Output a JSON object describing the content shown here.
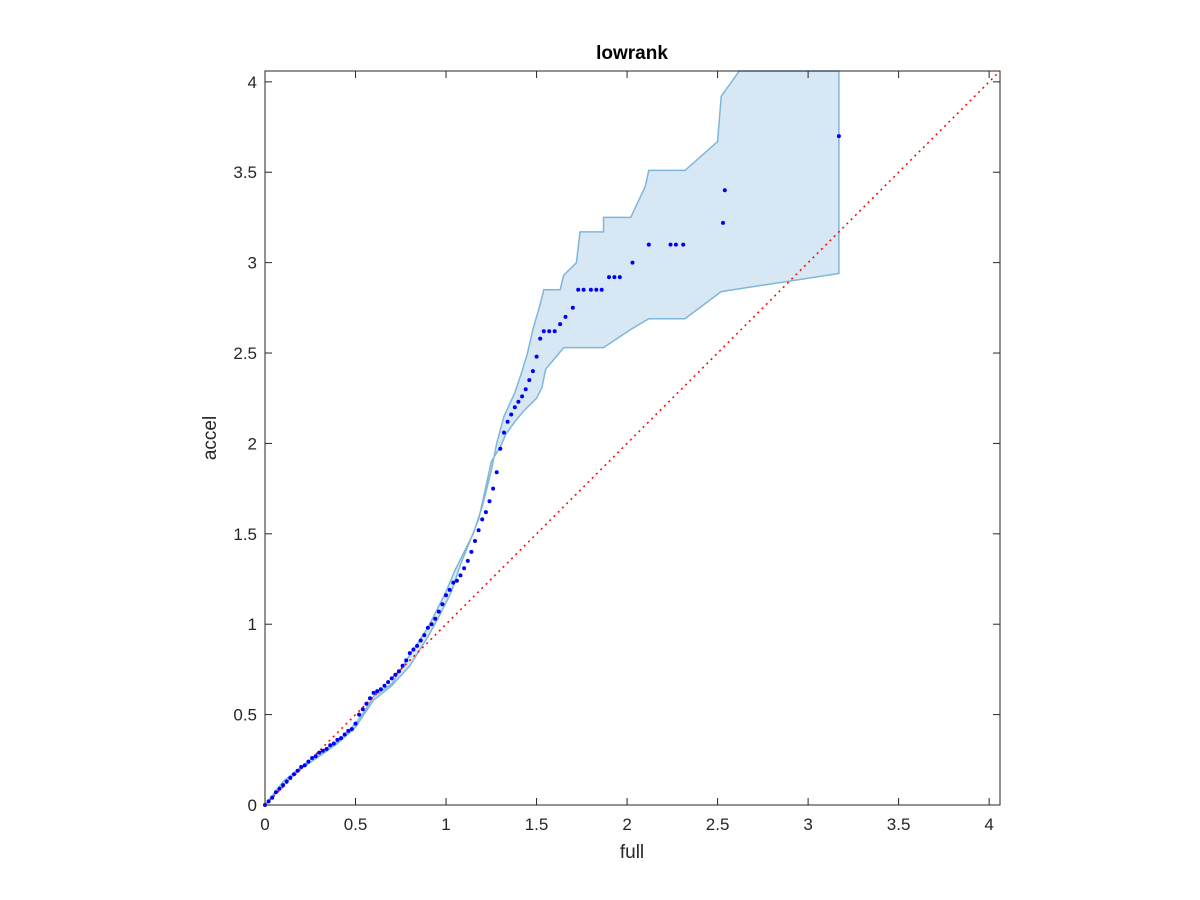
{
  "chart_data": {
    "type": "scatter",
    "title": "lowrank",
    "xlabel": "full",
    "ylabel": "accel",
    "xlim": [
      0,
      4.06
    ],
    "ylim": [
      0,
      4.06
    ],
    "xticks": [
      "0",
      "0.5",
      "1",
      "1.5",
      "2",
      "2.5",
      "3",
      "3.5",
      "4"
    ],
    "yticks": [
      "0",
      "0.5",
      "1",
      "1.5",
      "2",
      "2.5",
      "3",
      "3.5",
      "4"
    ],
    "grid": false,
    "colors": {
      "points": "#0000ff",
      "band_fill": "#d7e7f3",
      "band_edge": "#7fb6db",
      "reference": "#ff0000",
      "axes": "#262626"
    },
    "reference_line": {
      "style": "dotted",
      "points": [
        [
          0,
          0
        ],
        [
          4.06,
          4.06
        ]
      ]
    },
    "band_upper": [
      [
        0,
        0
      ],
      [
        0.1,
        0.13
      ],
      [
        0.2,
        0.21
      ],
      [
        0.3,
        0.29
      ],
      [
        0.4,
        0.35
      ],
      [
        0.5,
        0.45
      ],
      [
        0.55,
        0.52
      ],
      [
        0.6,
        0.6
      ],
      [
        0.7,
        0.67
      ],
      [
        0.8,
        0.83
      ],
      [
        0.9,
        0.98
      ],
      [
        1.0,
        1.18
      ],
      [
        1.05,
        1.3
      ],
      [
        1.1,
        1.4
      ],
      [
        1.15,
        1.5
      ],
      [
        1.2,
        1.65
      ],
      [
        1.25,
        1.85
      ],
      [
        1.28,
        2.0
      ],
      [
        1.32,
        2.15
      ],
      [
        1.38,
        2.28
      ],
      [
        1.42,
        2.4
      ],
      [
        1.45,
        2.5
      ],
      [
        1.48,
        2.63
      ],
      [
        1.52,
        2.77
      ],
      [
        1.54,
        2.85
      ],
      [
        1.63,
        2.85
      ],
      [
        1.65,
        2.93
      ],
      [
        1.72,
        3.0
      ],
      [
        1.74,
        3.17
      ],
      [
        1.87,
        3.17
      ],
      [
        1.87,
        3.25
      ],
      [
        2.02,
        3.25
      ],
      [
        2.1,
        3.42
      ],
      [
        2.12,
        3.51
      ],
      [
        2.32,
        3.51
      ],
      [
        2.5,
        3.67
      ],
      [
        2.52,
        3.92
      ],
      [
        2.62,
        4.06
      ],
      [
        3.17,
        4.06
      ]
    ],
    "band_lower": [
      [
        3.17,
        2.94
      ],
      [
        2.52,
        2.84
      ],
      [
        2.32,
        2.69
      ],
      [
        2.12,
        2.69
      ],
      [
        2.02,
        2.63
      ],
      [
        1.87,
        2.53
      ],
      [
        1.65,
        2.53
      ],
      [
        1.6,
        2.47
      ],
      [
        1.55,
        2.41
      ],
      [
        1.53,
        2.31
      ],
      [
        1.5,
        2.25
      ],
      [
        1.43,
        2.18
      ],
      [
        1.38,
        2.12
      ],
      [
        1.33,
        2.05
      ],
      [
        1.3,
        1.98
      ],
      [
        1.25,
        1.9
      ],
      [
        1.22,
        1.76
      ],
      [
        1.18,
        1.58
      ],
      [
        1.12,
        1.43
      ],
      [
        1.08,
        1.33
      ],
      [
        1.03,
        1.18
      ],
      [
        0.97,
        1.06
      ],
      [
        0.9,
        0.93
      ],
      [
        0.8,
        0.77
      ],
      [
        0.7,
        0.66
      ],
      [
        0.6,
        0.58
      ],
      [
        0.5,
        0.43
      ],
      [
        0.4,
        0.34
      ],
      [
        0.3,
        0.27
      ],
      [
        0.2,
        0.2
      ],
      [
        0.1,
        0.11
      ],
      [
        0,
        0
      ]
    ],
    "x": [
      0,
      0.02,
      0.04,
      0.06,
      0.08,
      0.1,
      0.12,
      0.14,
      0.16,
      0.18,
      0.2,
      0.22,
      0.24,
      0.26,
      0.28,
      0.3,
      0.32,
      0.34,
      0.36,
      0.38,
      0.4,
      0.42,
      0.44,
      0.46,
      0.48,
      0.5,
      0.52,
      0.54,
      0.56,
      0.58,
      0.6,
      0.62,
      0.64,
      0.66,
      0.68,
      0.7,
      0.72,
      0.74,
      0.76,
      0.78,
      0.8,
      0.82,
      0.84,
      0.86,
      0.88,
      0.9,
      0.92,
      0.94,
      0.96,
      0.98,
      1.0,
      1.02,
      1.04,
      1.06,
      1.08,
      1.1,
      1.12,
      1.14,
      1.16,
      1.18,
      1.2,
      1.22,
      1.24,
      1.26,
      1.28,
      1.3,
      1.32,
      1.34,
      1.36,
      1.38,
      1.4,
      1.42,
      1.44,
      1.46,
      1.48,
      1.5,
      1.52,
      1.54,
      1.57,
      1.6,
      1.63,
      1.66,
      1.7,
      1.73,
      1.76,
      1.8,
      1.83,
      1.86,
      1.9,
      1.93,
      1.96,
      2.03,
      2.12,
      2.24,
      2.27,
      2.31,
      2.53,
      2.54,
      3.17
    ],
    "y": [
      0,
      0.02,
      0.04,
      0.07,
      0.09,
      0.11,
      0.13,
      0.15,
      0.17,
      0.19,
      0.21,
      0.22,
      0.24,
      0.26,
      0.27,
      0.29,
      0.3,
      0.31,
      0.33,
      0.34,
      0.36,
      0.37,
      0.39,
      0.41,
      0.42,
      0.45,
      0.5,
      0.53,
      0.56,
      0.59,
      0.62,
      0.63,
      0.64,
      0.66,
      0.68,
      0.7,
      0.72,
      0.74,
      0.77,
      0.8,
      0.84,
      0.86,
      0.88,
      0.91,
      0.94,
      0.98,
      1.0,
      1.03,
      1.07,
      1.11,
      1.16,
      1.19,
      1.23,
      1.24,
      1.27,
      1.31,
      1.35,
      1.4,
      1.46,
      1.52,
      1.58,
      1.62,
      1.68,
      1.75,
      1.84,
      1.97,
      2.06,
      2.12,
      2.16,
      2.2,
      2.23,
      2.26,
      2.3,
      2.35,
      2.4,
      2.48,
      2.58,
      2.62,
      2.62,
      2.62,
      2.66,
      2.7,
      2.75,
      2.85,
      2.85,
      2.85,
      2.85,
      2.85,
      2.92,
      2.92,
      2.92,
      3.0,
      3.1,
      3.1,
      3.1,
      3.1,
      3.22,
      3.4,
      3.7
    ]
  }
}
